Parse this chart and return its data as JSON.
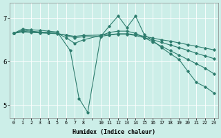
{
  "xlabel": "Humidex (Indice chaleur)",
  "ylabel": "",
  "bg_color": "#cceee8",
  "line_color": "#2e7d6e",
  "grid_color": "#ffffff",
  "ylim": [
    4.7,
    7.35
  ],
  "xlim": [
    -0.5,
    23.5
  ],
  "yticks": [
    5,
    6,
    7
  ],
  "xtick_labels": [
    "0",
    "1",
    "2",
    "3",
    "4",
    "5",
    "6",
    "7",
    "8",
    "",
    "10",
    "11",
    "12",
    "13",
    "14",
    "15",
    "16",
    "17",
    "18",
    "19",
    "20",
    "21",
    "22",
    "23"
  ],
  "xtick_positions": [
    0,
    1,
    2,
    3,
    4,
    5,
    6,
    7,
    8,
    9,
    10,
    11,
    12,
    13,
    14,
    15,
    16,
    17,
    18,
    19,
    20,
    21,
    22,
    23
  ],
  "series": [
    {
      "x": [
        0,
        1,
        2,
        3,
        4,
        5,
        6.5,
        7.5,
        8.5,
        10,
        11,
        12,
        13,
        14,
        15,
        16,
        17,
        18,
        19,
        20,
        21,
        22,
        23
      ],
      "y": [
        6.65,
        6.75,
        6.73,
        6.72,
        6.7,
        6.68,
        6.25,
        5.15,
        4.83,
        6.58,
        6.82,
        7.05,
        6.78,
        7.05,
        6.62,
        6.48,
        6.32,
        6.18,
        6.05,
        5.78,
        5.52,
        5.42,
        5.28
      ]
    },
    {
      "x": [
        0,
        1,
        2,
        3,
        4,
        5,
        6,
        7,
        8,
        10,
        11,
        12,
        13,
        14,
        15,
        16,
        17,
        18,
        19,
        20,
        21,
        22,
        23
      ],
      "y": [
        6.65,
        6.72,
        6.7,
        6.68,
        6.67,
        6.65,
        6.55,
        6.42,
        6.5,
        6.6,
        6.67,
        6.7,
        6.7,
        6.65,
        6.55,
        6.45,
        6.35,
        6.25,
        6.15,
        6.05,
        5.95,
        5.85,
        5.72
      ]
    },
    {
      "x": [
        0,
        1,
        2,
        3,
        4,
        5,
        6,
        7,
        8,
        10,
        11,
        12,
        13,
        14,
        15,
        16,
        17,
        18,
        19,
        20,
        21,
        22,
        23
      ],
      "y": [
        6.65,
        6.7,
        6.68,
        6.67,
        6.66,
        6.65,
        6.6,
        6.55,
        6.57,
        6.58,
        6.61,
        6.63,
        6.63,
        6.6,
        6.55,
        6.5,
        6.44,
        6.38,
        6.32,
        6.26,
        6.19,
        6.13,
        6.07
      ]
    },
    {
      "x": [
        0,
        1,
        2,
        3,
        4,
        5,
        6,
        7,
        8,
        10,
        11,
        12,
        13,
        14,
        15,
        16,
        17,
        18,
        19,
        20,
        21,
        22,
        23
      ],
      "y": [
        6.65,
        6.68,
        6.67,
        6.66,
        6.65,
        6.64,
        6.61,
        6.58,
        6.6,
        6.61,
        6.62,
        6.64,
        6.64,
        6.62,
        6.58,
        6.54,
        6.5,
        6.47,
        6.43,
        6.39,
        6.35,
        6.31,
        6.27
      ]
    }
  ]
}
